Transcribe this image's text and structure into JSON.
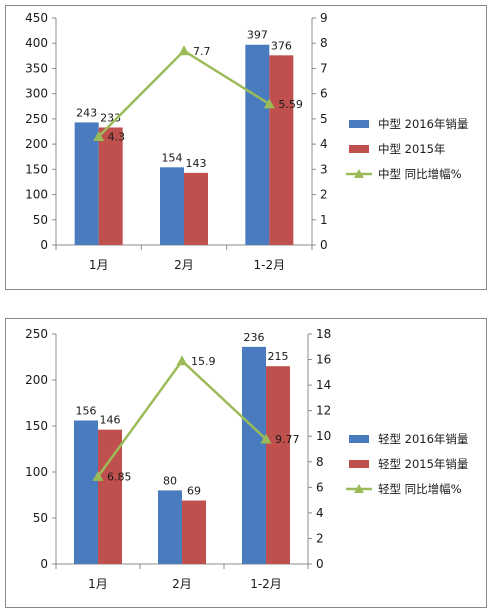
{
  "chart_data": [
    {
      "type": "bar",
      "categories": [
        "1月",
        "2月",
        "1-2月"
      ],
      "series": [
        {
          "name": "中型 2016年销量",
          "values": [
            243,
            154,
            397
          ],
          "color": "#4a7bbf",
          "axis": "left"
        },
        {
          "name": "中型 2015年",
          "values": [
            233,
            143,
            376
          ],
          "color": "#c0504d",
          "axis": "left"
        },
        {
          "name": "中型 同比增幅%",
          "kind": "line",
          "values": [
            4.3,
            7.7,
            5.59
          ],
          "color": "#9bbb59",
          "axis": "right"
        }
      ],
      "ylim": [
        0,
        450
      ],
      "yticks": [
        "0",
        "50",
        "100",
        "150",
        "200",
        "250",
        "300",
        "350",
        "400",
        "450"
      ],
      "y2lim": [
        0,
        9
      ],
      "y2ticks": [
        "0",
        "1",
        "2",
        "3",
        "4",
        "5",
        "6",
        "7",
        "8",
        "9"
      ],
      "value_labels": {
        "bars0": [
          "243",
          "154",
          "397"
        ],
        "bars1": [
          "233",
          "143",
          "376"
        ],
        "line": [
          "4.3",
          "7.7",
          "5.59"
        ]
      },
      "legend_position": "right",
      "grid": false
    },
    {
      "type": "bar",
      "categories": [
        "1月",
        "2月",
        "1-2月"
      ],
      "series": [
        {
          "name": "轻型 2016年销量",
          "values": [
            156,
            80,
            236
          ],
          "color": "#4a7bbf",
          "axis": "left"
        },
        {
          "name": "轻型 2015年销量",
          "values": [
            146,
            69,
            215
          ],
          "color": "#c0504d",
          "axis": "left"
        },
        {
          "name": "轻型 同比增幅%",
          "kind": "line",
          "values": [
            6.85,
            15.9,
            9.77
          ],
          "color": "#9bbb59",
          "axis": "right"
        }
      ],
      "ylim": [
        0,
        250
      ],
      "yticks": [
        "0",
        "50",
        "100",
        "150",
        "200",
        "250"
      ],
      "y2lim": [
        0,
        18
      ],
      "y2ticks": [
        "0",
        "2",
        "4",
        "6",
        "8",
        "10",
        "12",
        "14",
        "16",
        "18"
      ],
      "value_labels": {
        "bars0": [
          "156",
          "80",
          "236"
        ],
        "bars1": [
          "146",
          "69",
          "215"
        ],
        "line": [
          "6.85",
          "15.9",
          "9.77"
        ]
      },
      "legend_position": "right",
      "grid": false
    }
  ]
}
